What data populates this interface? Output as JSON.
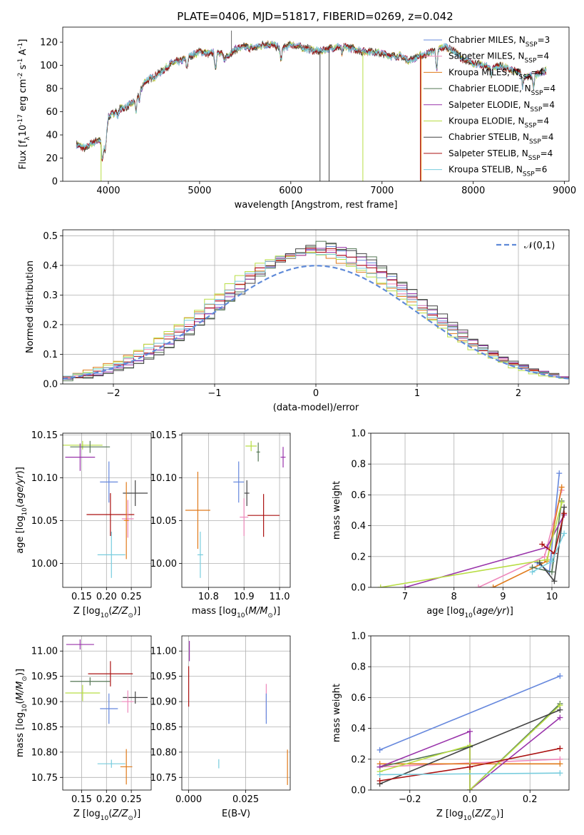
{
  "figure": {
    "title": "PLATE=0406, MJD=51817, FIBERID=0269, z=0.042"
  },
  "colors": {
    "ChabrierMILES": "#6688dd",
    "SalpeterMILES": "#ee88bb",
    "KroupaMILES": "#e07a1a",
    "ChabrierELODIE": "#557755",
    "SalpeterELODIE": "#9933aa",
    "KroupaELODIE": "#b8dd44",
    "ChabrierSTELIB": "#444444",
    "SalpeterSTELIB": "#aa1111",
    "KroupaSTELIB": "#77ccdd",
    "normal": "#5f8ad8"
  },
  "chart_data": [
    {
      "id": "spectrum",
      "type": "line",
      "title": "PLATE=0406, MJD=51817, FIBERID=0269, z=0.042",
      "xlabel": "wavelength [Angstrom, rest frame]",
      "ylabel": "Flux [f$_\\lambda$10$^{-17}$ erg cm$^{-2}$ s$^{-1}$ A$^{-1}$]",
      "xlim": [
        3500,
        9050
      ],
      "ylim": [
        0,
        133
      ],
      "xticks": [
        4000,
        5000,
        6000,
        7000,
        8000,
        9000
      ],
      "yticks": [
        0,
        20,
        40,
        60,
        80,
        100,
        120
      ],
      "grid": false,
      "legend_position": "top-right",
      "continuum": {
        "x": [
          3650,
          3700,
          3750,
          3800,
          3850,
          3900,
          3950,
          4000,
          4100,
          4200,
          4300,
          4400,
          4500,
          4600,
          4700,
          4800,
          4900,
          5000,
          5100,
          5200,
          5300,
          5400,
          5500,
          5600,
          5700,
          5800,
          5900,
          6000,
          6100,
          6200,
          6300,
          6400,
          6500,
          6600,
          6700,
          6800,
          6900,
          7000,
          7100,
          7200,
          7300,
          7400,
          7500,
          7600,
          7700,
          7800,
          7900,
          8000,
          8100,
          8200,
          8300,
          8400,
          8500,
          8600,
          8700,
          8800
        ],
        "y": [
          32,
          30,
          28,
          32,
          34,
          36,
          30,
          55,
          62,
          64,
          70,
          86,
          90,
          96,
          102,
          104,
          108,
          112,
          110,
          112,
          108,
          114,
          116,
          115,
          118,
          118,
          114,
          118,
          116,
          114,
          112,
          114,
          116,
          116,
          114,
          112,
          112,
          110,
          108,
          108,
          104,
          108,
          110,
          114,
          116,
          112,
          104,
          102,
          100,
          98,
          100,
          96,
          94,
          90,
          92,
          96
        ]
      },
      "series": [
        {
          "name": "Chabrier MILES, N$_{SSP}$=3",
          "key": "ChabrierMILES"
        },
        {
          "name": "Salpeter MILES, N$_{SSP}$=4",
          "key": "SalpeterMILES"
        },
        {
          "name": "Kroupa MILES, N$_{SSP}$=4",
          "key": "KroupaMILES"
        },
        {
          "name": "Chabrier ELODIE, N$_{SSP}$=4",
          "key": "ChabrierELODIE"
        },
        {
          "name": "Salpeter ELODIE, N$_{SSP}$=4",
          "key": "SalpeterELODIE"
        },
        {
          "name": "Kroupa ELODIE, N$_{SSP}$=4",
          "key": "KroupaELODIE"
        },
        {
          "name": "Chabrier STELIB, N$_{SSP}$=4",
          "key": "ChabrierSTELIB"
        },
        {
          "name": "Salpeter STELIB, N$_{SSP}$=4",
          "key": "SalpeterSTELIB"
        },
        {
          "name": "Kroupa STELIB, N$_{SSP}$=6",
          "key": "KroupaSTELIB"
        }
      ],
      "drop_lines": [
        {
          "x": 3920,
          "key": "KroupaELODIE"
        },
        {
          "x": 6320,
          "key": "ChabrierSTELIB"
        },
        {
          "x": 6420,
          "key": "ChabrierSTELIB"
        },
        {
          "x": 6790,
          "key": "KroupaELODIE"
        },
        {
          "x": 7420,
          "key": "SalpeterSTELIB"
        },
        {
          "x": 7430,
          "key": "KroupaMILES"
        }
      ],
      "spike_lines": [
        {
          "x": 5350,
          "top": 130,
          "key": "ChabrierSTELIB"
        }
      ]
    },
    {
      "id": "residuals",
      "type": "line",
      "xlabel": "(data-model)/error",
      "ylabel": "Normed distribution",
      "xlim": [
        -2.5,
        2.5
      ],
      "ylim": [
        0,
        0.52
      ],
      "xticks": [
        -2,
        -1,
        0,
        1,
        2
      ],
      "yticks": [
        0.0,
        0.1,
        0.2,
        0.3,
        0.4,
        0.5
      ],
      "grid": true,
      "legend_position": "top-right",
      "normal_curve": {
        "name": "$\\mathcal{N}(0,1)$",
        "mean": 0,
        "sigma": 1
      },
      "histogram": {
        "bin_start": -2.5,
        "bin_width": 0.1,
        "bins": 50
      },
      "series_shift": [
        {
          "key": "ChabrierMILES",
          "mu": 0.05,
          "sigma": 0.97
        },
        {
          "key": "SalpeterMILES",
          "mu": 0.0,
          "sigma": 1.0
        },
        {
          "key": "KroupaMILES",
          "mu": -0.05,
          "sigma": 1.03
        },
        {
          "key": "ChabrierELODIE",
          "mu": 0.1,
          "sigma": 0.95
        },
        {
          "key": "SalpeterELODIE",
          "mu": 0.08,
          "sigma": 0.98
        },
        {
          "key": "KroupaELODIE",
          "mu": -0.08,
          "sigma": 1.0
        },
        {
          "key": "ChabrierSTELIB",
          "mu": 0.12,
          "sigma": 0.96
        },
        {
          "key": "SalpeterSTELIB",
          "mu": 0.02,
          "sigma": 0.99
        },
        {
          "key": "KroupaSTELIB",
          "mu": -0.02,
          "sigma": 1.01
        }
      ]
    },
    {
      "id": "age_vs_Z",
      "type": "scatter",
      "xlabel": "Z [log$_{10}$($Z/Z_\\odot$)]",
      "ylabel": "age  [log$_{10}$($age/yr$)]",
      "xlim": [
        0.112,
        0.29
      ],
      "ylim": [
        9.972,
        10.152
      ],
      "xticks": [
        0.15,
        0.2,
        0.25
      ],
      "yticks": [
        10.0,
        10.05,
        10.1,
        10.15
      ],
      "grid": true,
      "points": [
        {
          "key": "KroupaELODIE",
          "x": 0.152,
          "y": 10.138,
          "xerr": 0.04,
          "yerr": 0.005
        },
        {
          "key": "ChabrierELODIE",
          "x": 0.167,
          "y": 10.136,
          "xerr": 0.04,
          "yerr": 0.007
        },
        {
          "key": "SalpeterELODIE",
          "x": 0.147,
          "y": 10.124,
          "xerr": 0.03,
          "yerr": 0.016
        },
        {
          "key": "ChabrierMILES",
          "x": 0.205,
          "y": 10.095,
          "xerr": 0.018,
          "yerr": 0.024
        },
        {
          "key": "ChabrierSTELIB",
          "x": 0.258,
          "y": 10.082,
          "xerr": 0.025,
          "yerr": 0.015
        },
        {
          "key": "SalpeterSTELIB",
          "x": 0.208,
          "y": 10.057,
          "xerr": 0.048,
          "yerr": 0.025
        },
        {
          "key": "SalpeterMILES",
          "x": 0.243,
          "y": 10.052,
          "xerr": 0.012,
          "yerr": 0.022
        },
        {
          "key": "KroupaMILES",
          "x": 0.24,
          "y": 10.05,
          "xerr": 0.005,
          "yerr": 0.045
        },
        {
          "key": "KroupaSTELIB",
          "x": 0.21,
          "y": 10.01,
          "xerr": 0.028,
          "yerr": 0.027
        }
      ]
    },
    {
      "id": "age_vs_mass",
      "type": "scatter",
      "xlabel": "mass [log$_{10}$($M/M_\\odot$)]",
      "ylabel": "",
      "xlim": [
        10.725,
        11.03
      ],
      "ylim": [
        9.972,
        10.152
      ],
      "xticks": [
        10.8,
        10.9,
        11.0
      ],
      "yticks": [
        10.0,
        10.05,
        10.1,
        10.15
      ],
      "grid": true,
      "points": [
        {
          "key": "KroupaELODIE",
          "x": 10.92,
          "y": 10.137,
          "xerr": 0.016,
          "yerr": 0.006
        },
        {
          "key": "ChabrierELODIE",
          "x": 10.94,
          "y": 10.13,
          "xerr": 0.005,
          "yerr": 0.011
        },
        {
          "key": "SalpeterELODIE",
          "x": 11.01,
          "y": 10.124,
          "xerr": 0.007,
          "yerr": 0.012
        },
        {
          "key": "ChabrierMILES",
          "x": 10.885,
          "y": 10.095,
          "xerr": 0.015,
          "yerr": 0.024
        },
        {
          "key": "ChabrierSTELIB",
          "x": 10.908,
          "y": 10.082,
          "xerr": 0.007,
          "yerr": 0.015
        },
        {
          "key": "KroupaMILES",
          "x": 10.77,
          "y": 10.062,
          "xerr": 0.035,
          "yerr": 0.045
        },
        {
          "key": "SalpeterSTELIB",
          "x": 10.955,
          "y": 10.056,
          "xerr": 0.045,
          "yerr": 0.025
        },
        {
          "key": "SalpeterMILES",
          "x": 10.9,
          "y": 10.054,
          "xerr": 0.012,
          "yerr": 0.022
        },
        {
          "key": "KroupaSTELIB",
          "x": 10.777,
          "y": 10.01,
          "xerr": 0.008,
          "yerr": 0.027
        }
      ]
    },
    {
      "id": "weight_vs_age",
      "type": "line",
      "xlabel": "age  [log$_{10}$($age/yr$)]",
      "ylabel": "mass weight",
      "xlim": [
        6.3,
        10.35
      ],
      "ylim": [
        0,
        1
      ],
      "xticks": [
        7,
        8,
        9,
        10
      ],
      "yticks": [
        0.0,
        0.2,
        0.4,
        0.6,
        0.8,
        1.0
      ],
      "grid": true,
      "series": [
        {
          "key": "ChabrierMILES",
          "x": [
            9.7,
            9.95,
            10.15
          ],
          "y": [
            0.16,
            0.1,
            0.74
          ]
        },
        {
          "key": "SalpeterMILES",
          "x": [
            8.5,
            9.85,
            10.2
          ],
          "y": [
            0.0,
            0.2,
            0.63
          ]
        },
        {
          "key": "KroupaMILES",
          "x": [
            8.8,
            9.9,
            10.2
          ],
          "y": [
            0.0,
            0.17,
            0.65
          ]
        },
        {
          "key": "ChabrierELODIE",
          "x": [
            9.6,
            10.0,
            10.2
          ],
          "y": [
            0.13,
            0.1,
            0.56
          ]
        },
        {
          "key": "SalpeterELODIE",
          "x": [
            7.0,
            9.9,
            10.25
          ],
          "y": [
            0.0,
            0.26,
            0.47
          ]
        },
        {
          "key": "KroupaELODIE",
          "x": [
            6.5,
            9.9,
            10.2
          ],
          "y": [
            0.0,
            0.18,
            0.55
          ]
        },
        {
          "key": "ChabrierSTELIB",
          "x": [
            9.75,
            10.05,
            10.25
          ],
          "y": [
            0.16,
            0.04,
            0.52
          ]
        },
        {
          "key": "SalpeterSTELIB",
          "x": [
            9.8,
            10.05,
            10.25
          ],
          "y": [
            0.28,
            0.22,
            0.48
          ]
        },
        {
          "key": "KroupaSTELIB",
          "x": [
            9.6,
            10.0,
            10.25
          ],
          "y": [
            0.1,
            0.17,
            0.35
          ]
        }
      ]
    },
    {
      "id": "mass_vs_Z",
      "type": "scatter",
      "xlabel": "Z [log$_{10}$($Z/Z_\\odot$)]",
      "ylabel": "mass [log$_{10}$($M/M_\\odot$)]",
      "xlim": [
        0.112,
        0.29
      ],
      "ylim": [
        10.725,
        11.03
      ],
      "xticks": [
        0.15,
        0.2,
        0.25
      ],
      "yticks": [
        10.75,
        10.8,
        10.85,
        10.9,
        10.95,
        11.0
      ],
      "grid": true,
      "points": [
        {
          "key": "SalpeterELODIE",
          "x": 0.147,
          "y": 11.013,
          "xerr": 0.028,
          "yerr": 0.01
        },
        {
          "key": "SalpeterSTELIB",
          "x": 0.208,
          "y": 10.955,
          "xerr": 0.045,
          "yerr": 0.025
        },
        {
          "key": "ChabrierELODIE",
          "x": 0.167,
          "y": 10.94,
          "xerr": 0.04,
          "yerr": 0.008
        },
        {
          "key": "KroupaELODIE",
          "x": 0.152,
          "y": 10.917,
          "xerr": 0.035,
          "yerr": 0.016
        },
        {
          "key": "ChabrierSTELIB",
          "x": 0.258,
          "y": 10.908,
          "xerr": 0.025,
          "yerr": 0.012
        },
        {
          "key": "SalpeterMILES",
          "x": 0.243,
          "y": 10.9,
          "xerr": 0.012,
          "yerr": 0.022
        },
        {
          "key": "ChabrierMILES",
          "x": 0.205,
          "y": 10.886,
          "xerr": 0.018,
          "yerr": 0.03
        },
        {
          "key": "KroupaSTELIB",
          "x": 0.21,
          "y": 10.777,
          "xerr": 0.028,
          "yerr": 0.008
        },
        {
          "key": "KroupaMILES",
          "x": 0.24,
          "y": 10.771,
          "xerr": 0.012,
          "yerr": 0.035
        }
      ]
    },
    {
      "id": "mass_vs_EBV",
      "type": "scatter",
      "xlabel": "E(B-V)",
      "ylabel": "",
      "xlim": [
        -0.003,
        0.0445
      ],
      "ylim": [
        10.725,
        11.03
      ],
      "xticks": [
        0.0,
        0.025
      ],
      "yticks": [
        10.75,
        10.8,
        10.85,
        10.9,
        10.95,
        11.0
      ],
      "grid": true,
      "points": [
        {
          "key": "SalpeterELODIE",
          "x": 0.0003,
          "y": 11.0,
          "xerr": 0.0,
          "yerr": 0.02
        },
        {
          "key": "SalpeterSTELIB",
          "x": 0.0,
          "y": 10.93,
          "xerr": 0.0,
          "yerr": 0.04
        },
        {
          "key": "SalpeterMILES",
          "x": 0.034,
          "y": 10.9,
          "xerr": 0.0,
          "yerr": 0.035
        },
        {
          "key": "ChabrierMILES",
          "x": 0.034,
          "y": 10.886,
          "xerr": 0.0,
          "yerr": 0.03
        },
        {
          "key": "KroupaSTELIB",
          "x": 0.0132,
          "y": 10.777,
          "xerr": 0.0,
          "yerr": 0.009
        },
        {
          "key": "KroupaMILES",
          "x": 0.0433,
          "y": 10.77,
          "xerr": 0.0,
          "yerr": 0.035
        }
      ]
    },
    {
      "id": "weight_vs_Z",
      "type": "line",
      "xlabel": "Z [log$_{10}$($Z/Z_\\odot$)]",
      "ylabel": "mass weight",
      "xlim": [
        -0.33,
        0.33
      ],
      "ylim": [
        0,
        1
      ],
      "xticks": [
        -0.2,
        0.0,
        0.2
      ],
      "yticks": [
        0.0,
        0.2,
        0.4,
        0.6,
        0.8,
        1.0
      ],
      "grid": true,
      "series": [
        {
          "key": "ChabrierMILES",
          "x": [
            -0.3,
            0.3
          ],
          "y": [
            0.26,
            0.74
          ]
        },
        {
          "key": "SalpeterMILES",
          "x": [
            -0.3,
            0.3
          ],
          "y": [
            0.15,
            0.2
          ]
        },
        {
          "key": "KroupaMILES",
          "x": [
            -0.3,
            0.3
          ],
          "y": [
            0.17,
            0.17
          ]
        },
        {
          "key": "ChabrierELODIE",
          "x": [
            -0.3,
            0.0,
            0.0,
            0.3
          ],
          "y": [
            0.15,
            0.28,
            0.0,
            0.56
          ]
        },
        {
          "key": "SalpeterELODIE",
          "x": [
            -0.3,
            0.0,
            0.0,
            0.3
          ],
          "y": [
            0.15,
            0.38,
            0.0,
            0.47
          ]
        },
        {
          "key": "KroupaELODIE",
          "x": [
            -0.3,
            0.0,
            0.0,
            0.3
          ],
          "y": [
            0.12,
            0.29,
            0.0,
            0.55
          ]
        },
        {
          "key": "ChabrierSTELIB",
          "x": [
            -0.3,
            0.3
          ],
          "y": [
            0.04,
            0.52
          ]
        },
        {
          "key": "SalpeterSTELIB",
          "x": [
            -0.3,
            0.0,
            0.3
          ],
          "y": [
            0.06,
            0.15,
            0.27
          ]
        },
        {
          "key": "KroupaSTELIB",
          "x": [
            -0.3,
            0.3
          ],
          "y": [
            0.1,
            0.11
          ]
        }
      ]
    }
  ]
}
